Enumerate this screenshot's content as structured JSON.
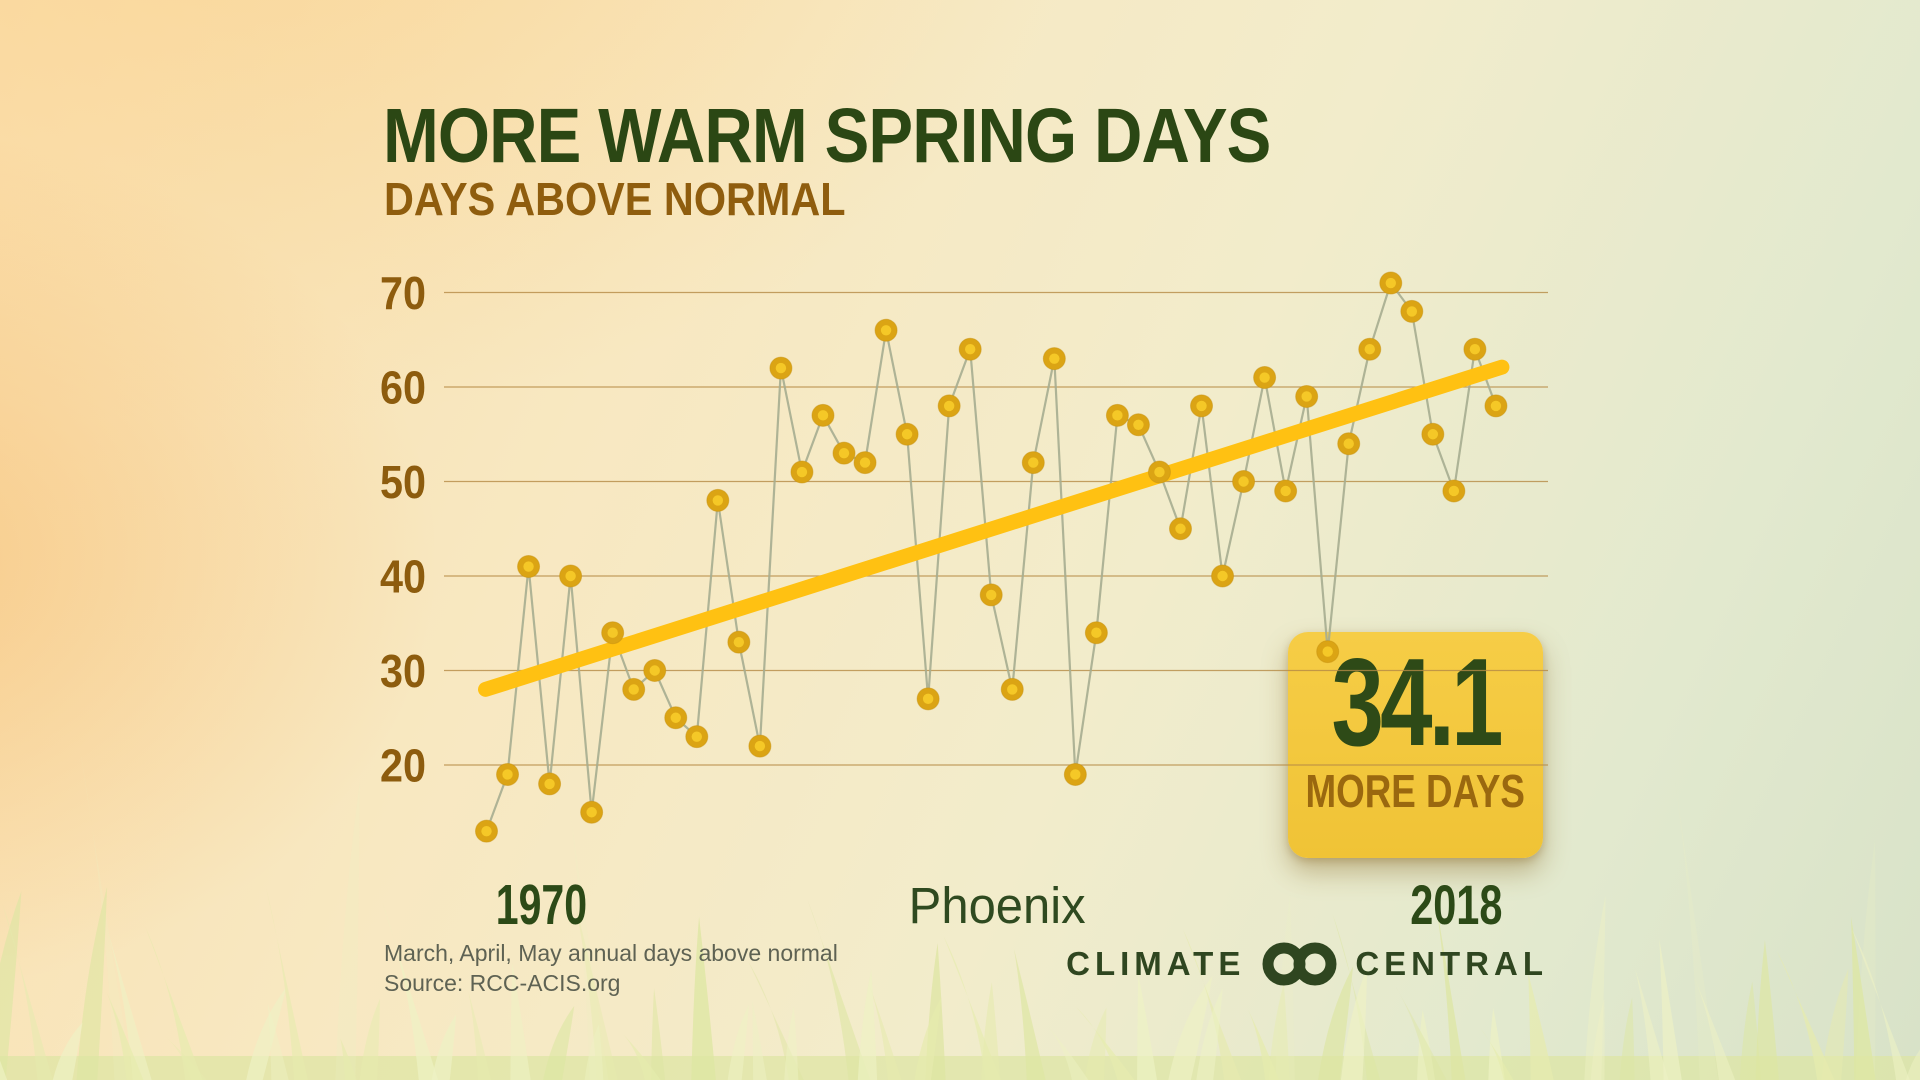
{
  "header": {
    "title": "MORE WARM SPRING DAYS",
    "subtitle": "DAYS ABOVE NORMAL"
  },
  "x_axis": {
    "start_label": "1970",
    "city_label": "Phoenix",
    "end_label": "2018"
  },
  "badge": {
    "value": "34.1",
    "label": "MORE DAYS"
  },
  "footnote": {
    "line1": "March, April, May annual days above normal",
    "line2": "Source: RCC-ACIS.org"
  },
  "logo": {
    "climate": "CLIMATE",
    "central": "CENTRAL",
    "icon": "linked-rings-icon"
  },
  "colors": {
    "title_green": "#2B4714",
    "subtitle_brown": "#8F5D0E",
    "tick_brown": "#8D5C0E",
    "gridline": "#B68B46",
    "connector": "#A6AD90",
    "trend_yellow": "#FFC112",
    "point_outer": "#DBA414",
    "point_inner": "#F5C827",
    "point_rim": "#C8920F",
    "badge_bg": "#F4C83C",
    "badge_value_green": "#2E4A17",
    "badge_label_brown": "#9A680F",
    "footnote_gray": "#5E6253",
    "logo_green": "#2F4620",
    "grass_light": "#EEF2C4",
    "grass_mid": "#E6EBAE",
    "grass_dark": "#DDE6A2"
  },
  "chart_data": {
    "type": "scatter",
    "title": "MORE WARM SPRING DAYS",
    "subtitle": "DAYS ABOVE NORMAL",
    "city": "Phoenix",
    "ylabel": "Days above normal",
    "grid": true,
    "yticks": [
      70,
      60,
      50,
      40,
      30,
      20
    ],
    "ylim": [
      10,
      75
    ],
    "xlim": [
      1970,
      2018
    ],
    "x": [
      1970,
      1971,
      1972,
      1973,
      1974,
      1975,
      1976,
      1977,
      1978,
      1979,
      1980,
      1981,
      1982,
      1983,
      1984,
      1985,
      1986,
      1987,
      1988,
      1989,
      1990,
      1991,
      1992,
      1993,
      1994,
      1995,
      1996,
      1997,
      1998,
      1999,
      2000,
      2001,
      2002,
      2003,
      2004,
      2005,
      2006,
      2007,
      2008,
      2009,
      2010,
      2011,
      2012,
      2013,
      2014,
      2015,
      2016,
      2017,
      2018
    ],
    "values": [
      13,
      19,
      41,
      18,
      40,
      15,
      34,
      28,
      30,
      25,
      23,
      48,
      33,
      22,
      62,
      51,
      57,
      53,
      52,
      66,
      55,
      27,
      58,
      64,
      38,
      28,
      52,
      63,
      19,
      34,
      57,
      56,
      51,
      45,
      58,
      40,
      50,
      61,
      49,
      59,
      32,
      54,
      64,
      71,
      68,
      55,
      49,
      64,
      58
    ],
    "trend": {
      "type": "linear",
      "start_year": 1970,
      "end_year": 2018,
      "start_value": 28.0,
      "end_value": 62.1,
      "change_days": 34.1
    }
  }
}
